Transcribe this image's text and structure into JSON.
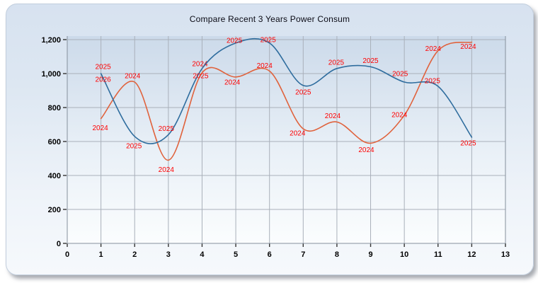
{
  "panel": {
    "title": "Compare Recent 3 Years Power Consum"
  },
  "chart_data": {
    "type": "line",
    "title": "Compare Recent 3 Years Power Consum",
    "xlabel": "",
    "ylabel": "",
    "xlim": [
      0,
      13
    ],
    "ylim": [
      0,
      1200
    ],
    "grid": true,
    "legend_position": "none",
    "line_style": "smooth-spline",
    "point_label_color": "#ff0000",
    "gridline_color": "#a9b0ba",
    "axis_border_color": "#85909c",
    "x_ticks": [
      "0",
      "1",
      "2",
      "3",
      "4",
      "5",
      "6",
      "7",
      "8",
      "9",
      "10",
      "11",
      "12",
      "13"
    ],
    "y_ticks": [
      {
        "value": 0,
        "label": "0"
      },
      {
        "value": 200,
        "label": "200"
      },
      {
        "value": 400,
        "label": "400"
      },
      {
        "value": 600,
        "label": "600"
      },
      {
        "value": 800,
        "label": "800"
      },
      {
        "value": 1000,
        "label": "1,000"
      },
      {
        "value": 1200,
        "label": "1,200"
      }
    ],
    "series": [
      {
        "name": "2024",
        "color": "#e0623c",
        "draw_line": true,
        "months": [
          1,
          2,
          3,
          4,
          5,
          6,
          7,
          8,
          9,
          10,
          11,
          12
        ],
        "values": [
          735,
          950,
          490,
          1005,
          980,
          1015,
          675,
          715,
          590,
          755,
          1135,
          1185
        ],
        "label_offsets": [
          [
            -1,
            13
          ],
          [
            -3,
            -9
          ],
          [
            -3,
            13
          ],
          [
            -3,
            -13
          ],
          [
            -5,
            7
          ],
          [
            -7,
            -8
          ],
          [
            -8,
            6
          ],
          [
            -6,
            -9
          ],
          [
            -6,
            9
          ],
          [
            -7,
            -1
          ],
          [
            -7,
            -3
          ],
          [
            -5,
            6
          ]
        ]
      },
      {
        "name": "2025",
        "color": "#2f6d9e",
        "draw_line": true,
        "months": [
          1,
          2,
          3,
          4,
          5,
          6,
          7,
          8,
          9,
          10,
          11,
          12
        ],
        "values": [
          1000,
          630,
          640,
          1030,
          1180,
          1180,
          930,
          1030,
          1040,
          950,
          925,
          625
        ],
        "label_offsets": [
          [
            3,
            -10
          ],
          [
            -1,
            13
          ],
          [
            -3,
            -9
          ],
          [
            -2,
            10
          ],
          [
            -2,
            -4
          ],
          [
            -2,
            -5
          ],
          [
            0,
            9
          ],
          [
            -1,
            -9
          ],
          [
            0,
            -9
          ],
          [
            -6,
            -12
          ],
          [
            -8,
            -8
          ],
          [
            -5,
            8
          ]
        ]
      },
      {
        "name": "2026",
        "color": "#2f6d9e",
        "draw_line": false,
        "months": [
          1
        ],
        "values": [
          930
        ],
        "label_offsets": [
          [
            3,
            -9
          ]
        ]
      }
    ]
  }
}
